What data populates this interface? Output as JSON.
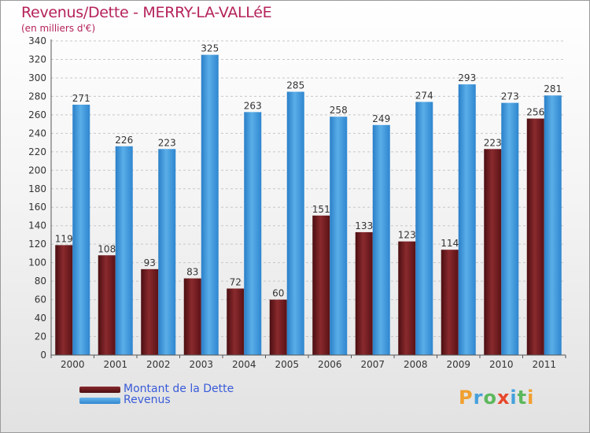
{
  "header": {
    "title": "Revenus/Dette - MERRY-LA-VALLéE",
    "subtitle": "(en milliers d'€)"
  },
  "logo": {
    "text": "Proxiti",
    "colors": [
      "#f0a030",
      "#46a0dc",
      "#5cb85c",
      "#e8482c",
      "#46a0dc",
      "#5cb85c",
      "#f0a030"
    ]
  },
  "chart_data": {
    "type": "bar",
    "categories": [
      "2000",
      "2001",
      "2002",
      "2003",
      "2004",
      "2005",
      "2006",
      "2007",
      "2008",
      "2009",
      "2010",
      "2011"
    ],
    "series": [
      {
        "name": "Montant de la Dette",
        "color": "#6e1a1e",
        "values": [
          119,
          108,
          93,
          83,
          72,
          60,
          151,
          133,
          123,
          114,
          223,
          256
        ]
      },
      {
        "name": "Revenus",
        "color": "#3d98dc",
        "values": [
          271,
          226,
          223,
          325,
          263,
          285,
          258,
          249,
          274,
          293,
          273,
          281
        ]
      }
    ],
    "ylim": [
      0,
      340
    ],
    "ystep": 20,
    "grid": true,
    "legend": "bottom-left"
  }
}
